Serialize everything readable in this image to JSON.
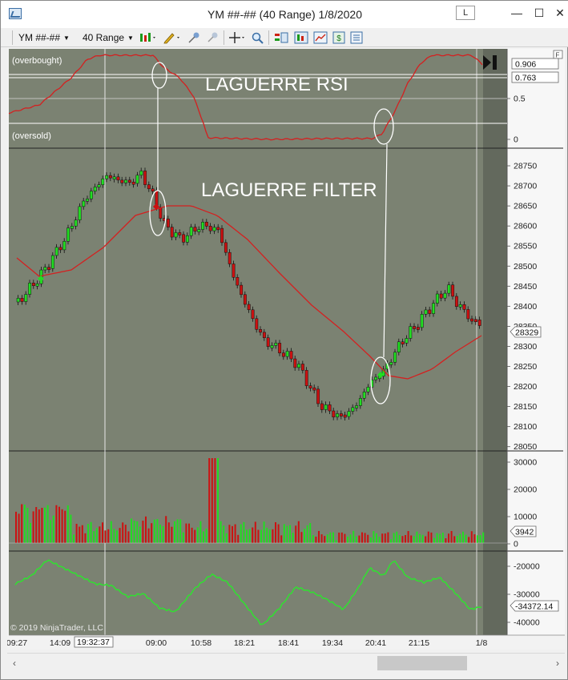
{
  "window": {
    "title": "YM ##-## (40 Range)  1/8/2020",
    "link_label": "L",
    "minimize": "—",
    "maximize": "☐",
    "close": "✕"
  },
  "toolbar": {
    "instrument": "YM ##-##",
    "interval": "40 Range"
  },
  "chart": {
    "rsi_panel": {
      "overbought_label": "(overbought)",
      "oversold_label": "(oversold)",
      "annotation": "LAGUERRE RSI",
      "axis_ticks": [
        "0.5",
        "0"
      ],
      "value_tags": [
        "0.906",
        "0.763"
      ],
      "expand_label": "F"
    },
    "price_panel": {
      "annotation": "LAGUERRE FILTER",
      "axis_ticks": [
        "28750",
        "28700",
        "28650",
        "28600",
        "28550",
        "28500",
        "28450",
        "28400",
        "28350",
        "28300",
        "28250",
        "28200",
        "28150",
        "28100",
        "28050"
      ],
      "price_tag": "28329"
    },
    "volume_panel": {
      "axis_ticks": [
        "30000",
        "20000",
        "10000",
        "0"
      ],
      "value_tag": "3942"
    },
    "oscillator_panel": {
      "axis_ticks": [
        "-20000",
        "-30000",
        "-40000"
      ],
      "value_tag": "-34372.14"
    },
    "copyright": "© 2019 NinjaTrader, LLC",
    "time_labels": [
      "09:27",
      "14:09",
      "09:00",
      "10:58",
      "18:21",
      "18:41",
      "19:34",
      "20:41",
      "21:15",
      "1/8"
    ],
    "crosshair_time": "19:32:37",
    "colors": {
      "background": "#7b8272",
      "up_bar": "#22dd22",
      "down_bar": "#cc1111",
      "filter_line": "#d42020",
      "oscillator": "#33dd33"
    }
  }
}
